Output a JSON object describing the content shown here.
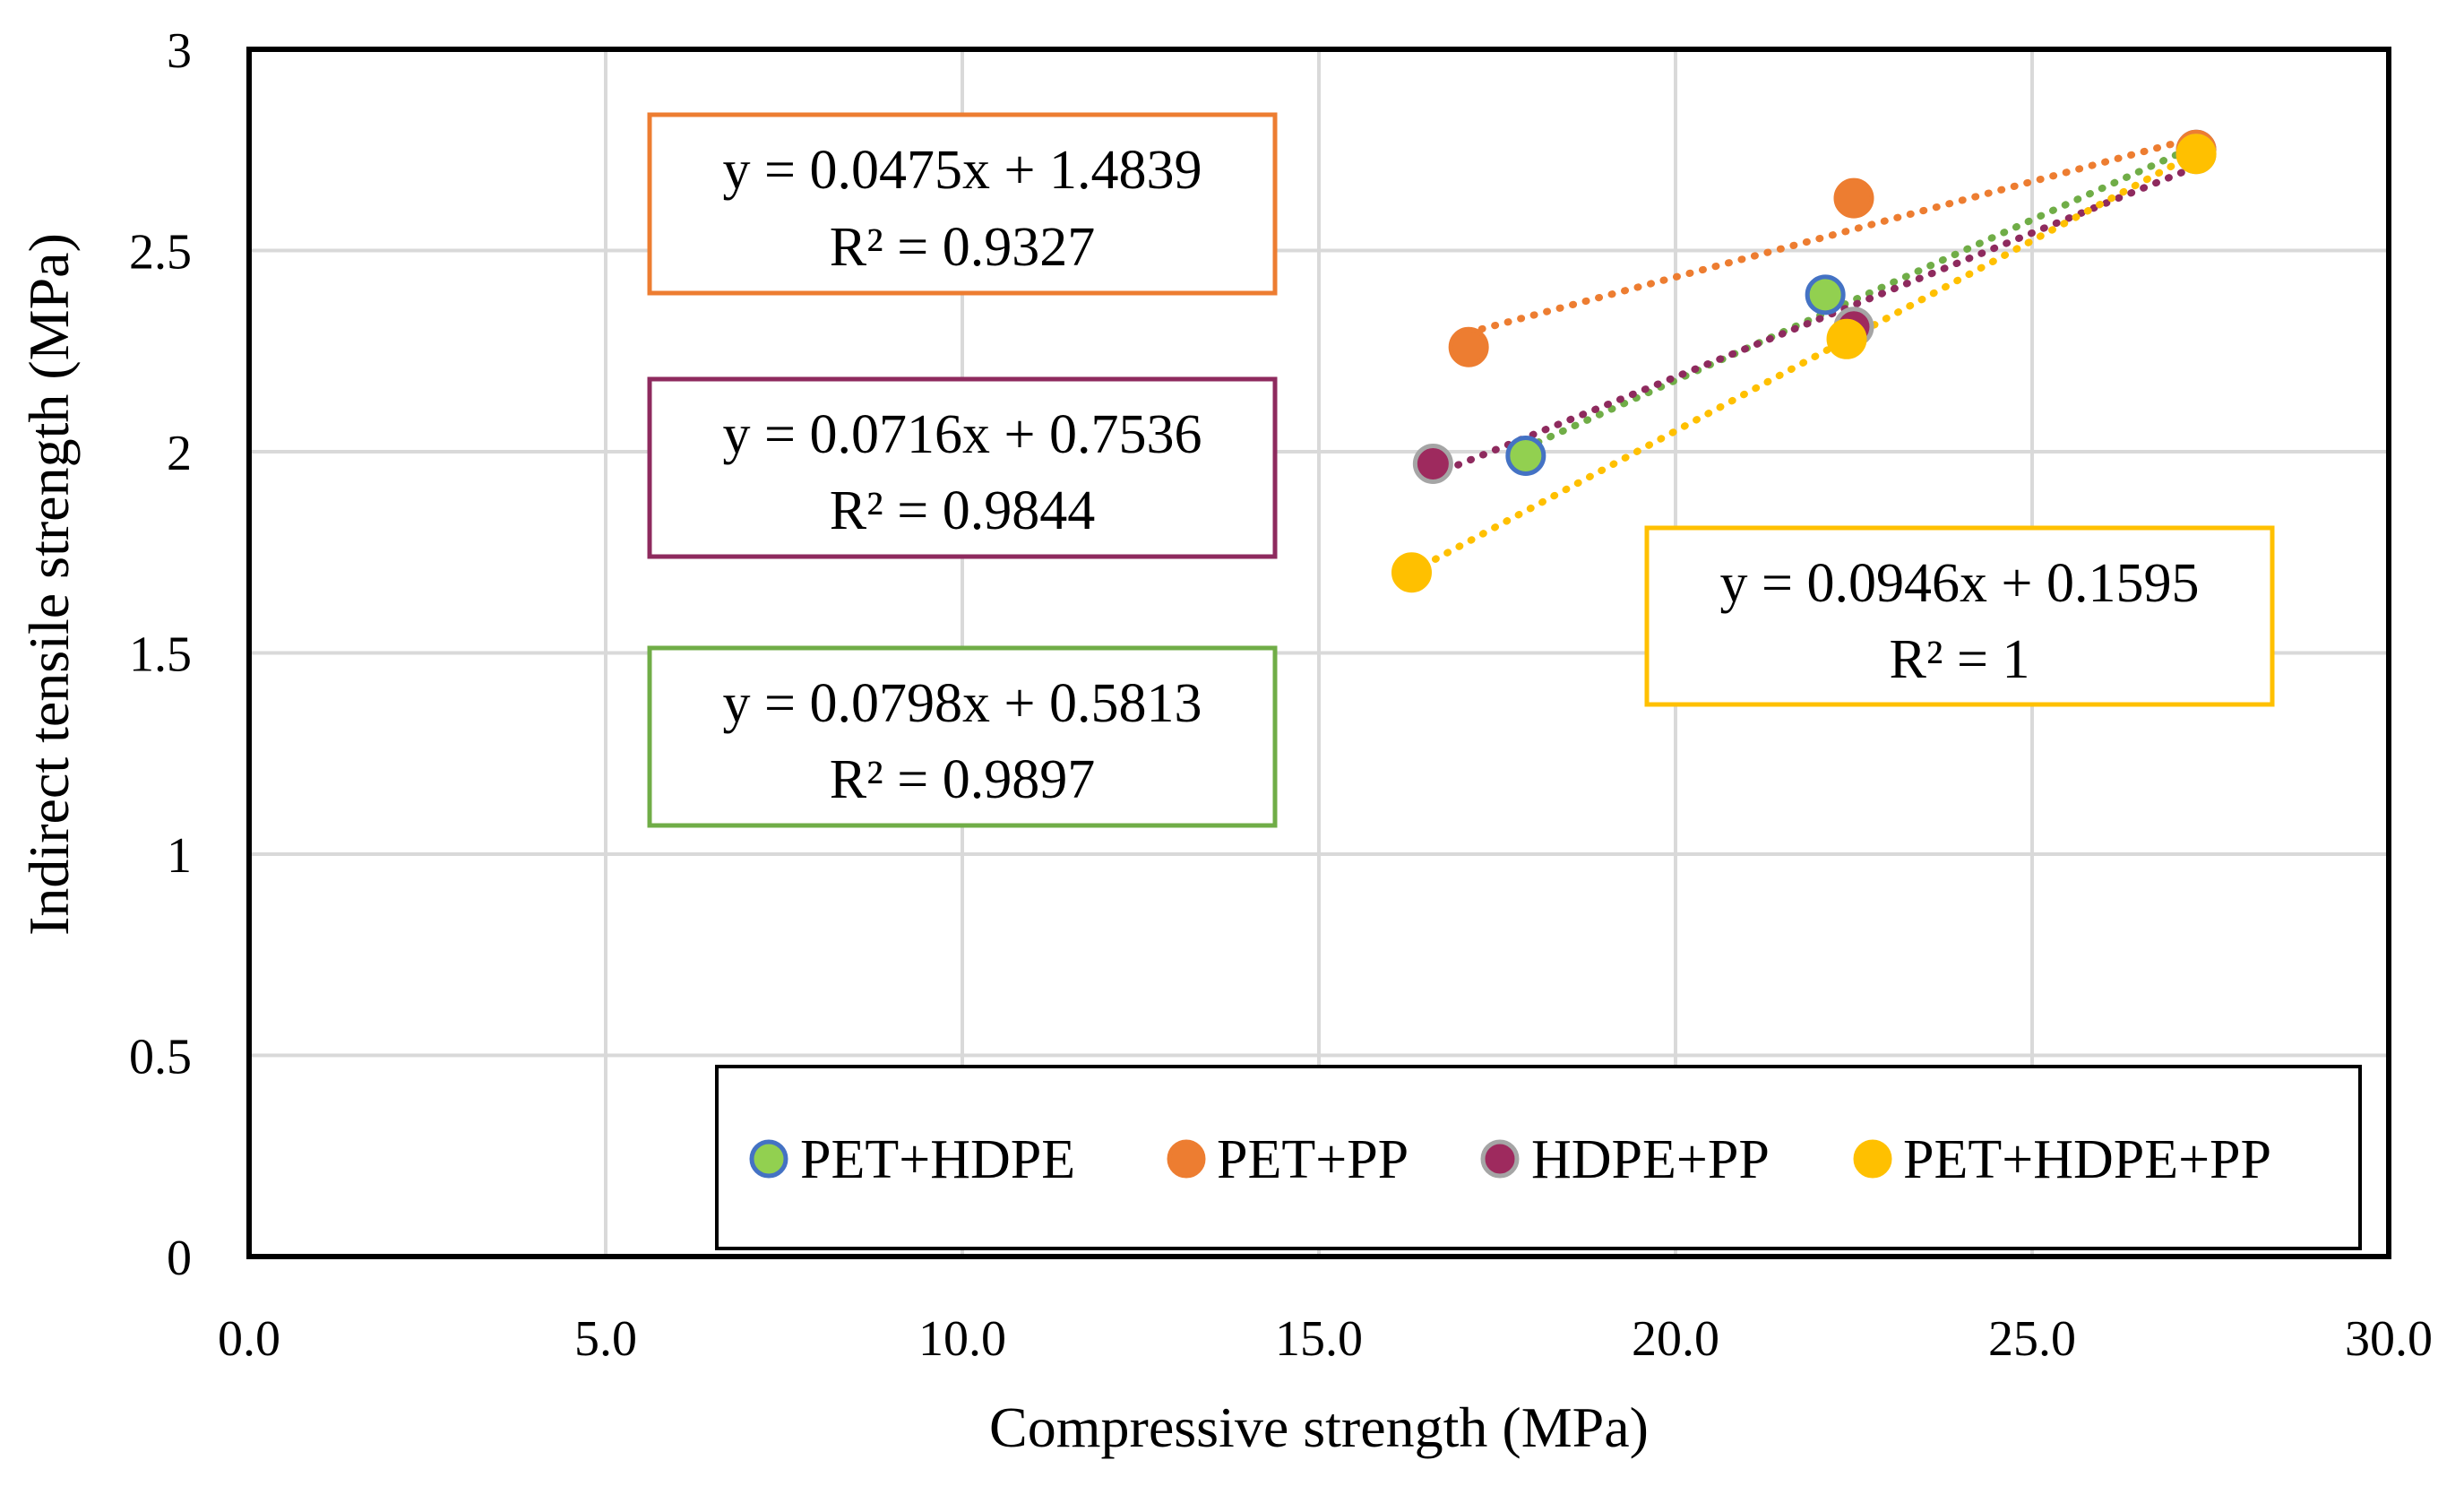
{
  "chart_data": {
    "type": "scatter",
    "xlabel": "Compressive strength (MPa)",
    "ylabel": "Indirect tensile strength (MPa)",
    "xlim": [
      0,
      30
    ],
    "ylim": [
      0,
      3
    ],
    "x_ticks": [
      "0.0",
      "5.0",
      "10.0",
      "15.0",
      "20.0",
      "25.0",
      "30.0"
    ],
    "y_ticks": [
      "0",
      "0.5",
      "1",
      "1.5",
      "2",
      "2.5",
      "3"
    ],
    "grid": true,
    "legend_position": "bottom-right",
    "series": [
      {
        "name": "PET+HDPE",
        "fill": "#92d050",
        "edge": "#4472c4",
        "line_color": "#70ad47",
        "points": [
          [
            17.9,
            1.99
          ],
          [
            22.1,
            2.39
          ],
          [
            27.3,
            2.75
          ]
        ],
        "trendline": {
          "x": [
            17.9,
            27.3
          ],
          "equation": "y = 0.0798x + 0.5813",
          "r2": "R² = 0.9897"
        }
      },
      {
        "name": "PET+PP",
        "fill": "#ed7d31",
        "edge": "#ed7d31",
        "line_color": "#ed7d31",
        "points": [
          [
            17.1,
            2.26
          ],
          [
            22.5,
            2.63
          ],
          [
            27.3,
            2.75
          ]
        ],
        "trendline": {
          "x": [
            17.1,
            27.3
          ],
          "equation": "y = 0.0475x + 1.4839",
          "r2": "R² = 0.9327"
        }
      },
      {
        "name": "HDPE+PP",
        "fill": "#9e2a5e",
        "edge": "#a5a5a5",
        "line_color": "#8e2a5e",
        "points": [
          [
            16.6,
            1.97
          ],
          [
            22.5,
            2.31
          ],
          [
            27.3,
            2.74
          ]
        ],
        "trendline": {
          "x": [
            16.6,
            27.3
          ],
          "equation": "y = 0.0716x + 0.7536",
          "r2": "R² = 0.9844"
        }
      },
      {
        "name": "PET+HDPE+PP",
        "fill": "#ffc000",
        "edge": "#ffc000",
        "line_color": "#ffc000",
        "points": [
          [
            16.3,
            1.7
          ],
          [
            22.4,
            2.28
          ],
          [
            27.3,
            2.74
          ]
        ],
        "trendline": {
          "x": [
            16.3,
            27.3
          ],
          "equation": "y = 0.0946x + 0.1595",
          "r2": "R² = 1"
        }
      }
    ]
  }
}
